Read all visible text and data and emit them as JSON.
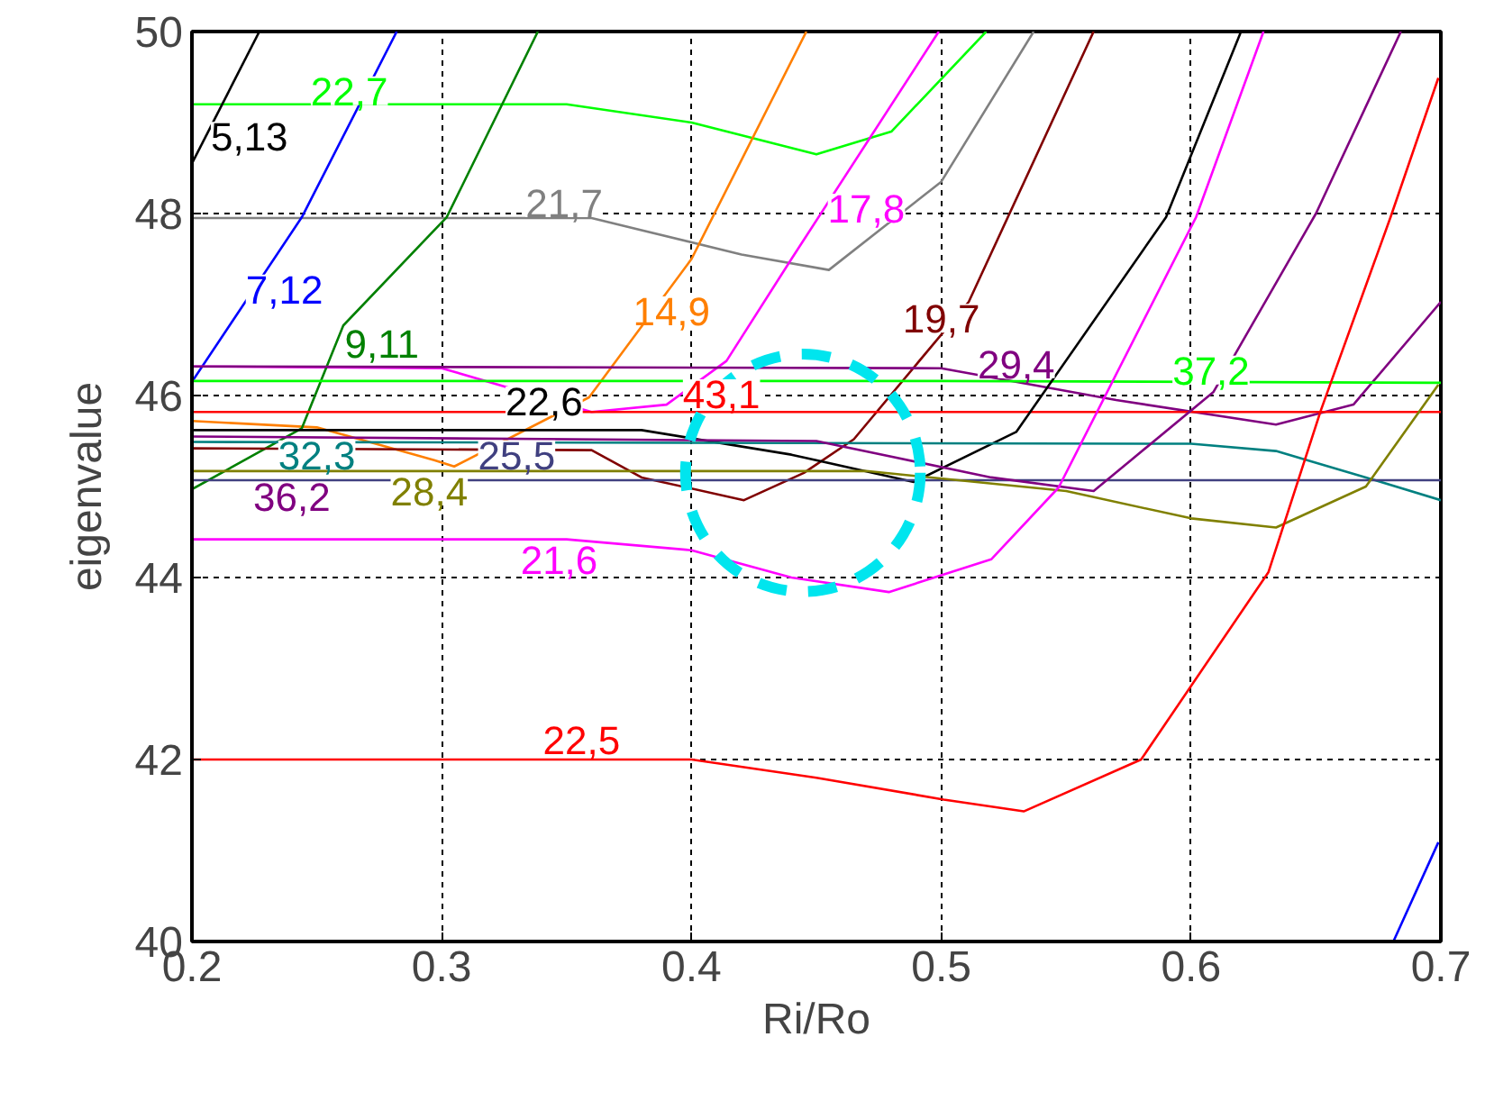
{
  "chart_data": {
    "type": "line",
    "xlabel": "Ri/Ro",
    "ylabel": "eigenvalue",
    "xlim": [
      0.2,
      0.7
    ],
    "xticks": [
      0.2,
      0.3,
      0.4,
      0.5,
      0.6,
      0.7
    ],
    "ylim": [
      40,
      50
    ],
    "yticks": [
      40,
      42,
      44,
      46,
      48,
      50
    ],
    "grid": true,
    "line_style": "solid",
    "marker": "none",
    "series": [
      {
        "color": "#00ff00",
        "x": [
          0.2,
          0.35,
          0.4,
          0.45,
          0.48,
          0.518
        ],
        "values": [
          49.2,
          49.2,
          49.0,
          48.65,
          48.9,
          50.0
        ]
      },
      {
        "color": "#000000",
        "x": [
          0.2,
          0.227
        ],
        "values": [
          48.55,
          50.0
        ]
      },
      {
        "color": "#808080",
        "x": [
          0.2,
          0.36,
          0.42,
          0.455,
          0.5,
          0.537
        ],
        "values": [
          47.95,
          47.95,
          47.55,
          47.38,
          48.35,
          50.0
        ]
      },
      {
        "color": "#0000ff",
        "x": [
          0.2,
          0.244,
          0.282
        ],
        "values": [
          46.15,
          47.96,
          50.0
        ]
      },
      {
        "color": "#ff7f00",
        "x": [
          0.2,
          0.25,
          0.297,
          0.305,
          0.359,
          0.4,
          0.446
        ],
        "values": [
          45.72,
          45.65,
          45.29,
          45.22,
          45.98,
          47.5,
          50.0
        ]
      },
      {
        "color": "#ff00ff",
        "x": [
          0.2,
          0.3,
          0.36,
          0.39,
          0.414,
          0.44,
          0.499
        ],
        "values": [
          46.32,
          46.3,
          45.82,
          45.9,
          46.38,
          47.5,
          50.0
        ]
      },
      {
        "color": "#008000",
        "x": [
          0.2,
          0.244,
          0.2606,
          0.302,
          0.3385
        ],
        "values": [
          44.97,
          45.64,
          46.77,
          47.96,
          50.0
        ]
      },
      {
        "color": "#800000",
        "x": [
          0.2,
          0.36,
          0.38,
          0.421,
          0.445,
          0.465,
          0.511,
          0.561
        ],
        "values": [
          45.42,
          45.4,
          45.1,
          44.85,
          45.15,
          45.52,
          47.03,
          50.0
        ]
      },
      {
        "color": "#800080",
        "x": [
          0.2,
          0.5,
          0.57,
          0.634,
          0.665,
          0.7
        ],
        "values": [
          46.32,
          46.3,
          45.95,
          45.68,
          45.9,
          47.03
        ]
      },
      {
        "color": "#00ff00",
        "x": [
          0.2,
          0.5,
          0.7
        ],
        "values": [
          46.16,
          46.16,
          46.14
        ]
      },
      {
        "color": "#ff0000",
        "x": [
          0.2,
          0.7
        ],
        "values": [
          45.82,
          45.82
        ]
      },
      {
        "color": "#000000",
        "x": [
          0.2,
          0.38,
          0.44,
          0.489,
          0.53,
          0.59,
          0.62
        ],
        "values": [
          45.62,
          45.62,
          45.35,
          45.05,
          45.6,
          47.96,
          50.0
        ]
      },
      {
        "color": "#008080",
        "x": [
          0.2,
          0.6,
          0.634,
          0.67,
          0.7
        ],
        "values": [
          45.49,
          45.47,
          45.39,
          45.1,
          44.85
        ]
      },
      {
        "color": "#404080",
        "x": [
          0.2,
          0.7
        ],
        "values": [
          45.07,
          45.07
        ]
      },
      {
        "color": "#800080",
        "x": [
          0.2,
          0.45,
          0.52,
          0.561,
          0.609,
          0.65,
          0.684
        ],
        "values": [
          45.55,
          45.5,
          45.1,
          44.95,
          46.04,
          48.0,
          50.0
        ]
      },
      {
        "color": "#808000",
        "x": [
          0.2,
          0.47,
          0.55,
          0.6,
          0.634,
          0.67,
          0.699
        ],
        "values": [
          45.17,
          45.17,
          44.95,
          44.65,
          44.55,
          45.0,
          46.12
        ]
      },
      {
        "color": "#ff00ff",
        "x": [
          0.2,
          0.35,
          0.4,
          0.44,
          0.479,
          0.52,
          0.547,
          0.602,
          0.629
        ],
        "values": [
          44.42,
          44.42,
          44.3,
          44.0,
          43.84,
          44.2,
          44.99,
          47.96,
          50.0
        ]
      },
      {
        "color": "#ff0000",
        "x": [
          0.2,
          0.4,
          0.45,
          0.501,
          0.533,
          0.58,
          0.631,
          0.652,
          0.68,
          0.699
        ],
        "values": [
          42.0,
          42.0,
          41.8,
          41.56,
          41.43,
          42.0,
          44.06,
          45.84,
          47.97,
          49.49
        ]
      },
      {
        "color": "#0000ff",
        "x": [
          0.681,
          0.699
        ],
        "values": [
          40.0,
          41.09
        ]
      }
    ],
    "annotations": [
      {
        "text": "22,7",
        "x": 0.263,
        "y": 49.35
      },
      {
        "text": "5,13",
        "x": 0.223,
        "y": 48.85
      },
      {
        "text": "21,7",
        "x": 0.349,
        "y": 48.12
      },
      {
        "text": "7,12",
        "x": 0.237,
        "y": 47.17
      },
      {
        "text": "14,9",
        "x": 0.392,
        "y": 46.93
      },
      {
        "text": "17,8",
        "x": 0.47,
        "y": 48.06
      },
      {
        "text": "9,11",
        "x": 0.276,
        "y": 46.57
      },
      {
        "text": "19,7",
        "x": 0.5,
        "y": 46.85
      },
      {
        "text": "29,4",
        "x": 0.53,
        "y": 46.35
      },
      {
        "text": "37,2",
        "x": 0.608,
        "y": 46.28
      },
      {
        "text": "43,1",
        "x": 0.412,
        "y": 46.02
      },
      {
        "text": "22,6",
        "x": 0.341,
        "y": 45.94
      },
      {
        "text": "32,3",
        "x": 0.25,
        "y": 45.35
      },
      {
        "text": "25,5",
        "x": 0.33,
        "y": 45.35
      },
      {
        "text": "36,2",
        "x": 0.24,
        "y": 44.89
      },
      {
        "text": "28,4",
        "x": 0.295,
        "y": 44.95
      },
      {
        "text": "21,6",
        "x": 0.347,
        "y": 44.2
      },
      {
        "text": "22,5",
        "x": 0.356,
        "y": 42.22
      }
    ]
  }
}
